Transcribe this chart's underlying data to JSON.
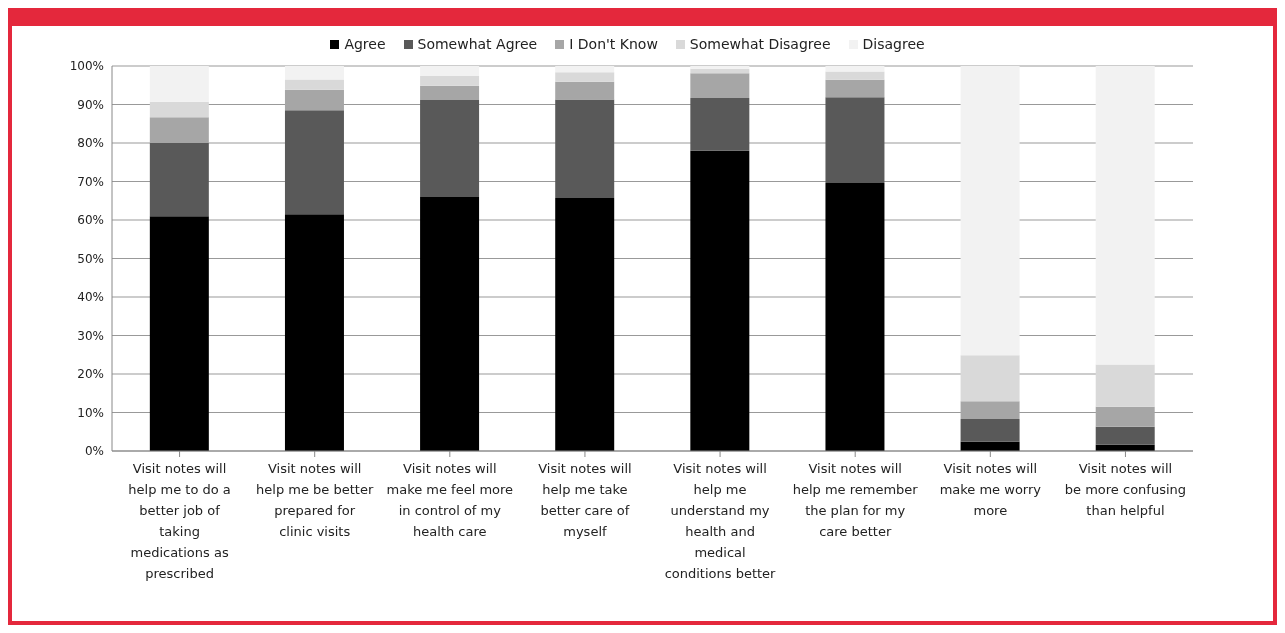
{
  "chart_data": {
    "type": "bar",
    "stacked": true,
    "legend": "top",
    "grid": "y",
    "categories": [
      "Visit notes will help me to do a better job of taking medications as prescribed",
      "Visit notes will help me be better prepared for clinic visits",
      "Visit notes will make me feel more in control of my health care",
      "Visit notes will help me take better care of myself",
      "Visit notes will help me understand my health and medical conditions better",
      "Visit notes will help me remember the plan for my care better",
      "Visit notes will make me worry more",
      "Visit notes will be more confusing than helpful"
    ],
    "series": [
      {
        "name": "Agree",
        "color": "#000000",
        "values": [
          61,
          61.5,
          66,
          65.7,
          78,
          69.6,
          2.4,
          1.6
        ]
      },
      {
        "name": "Somewhat Agree",
        "color": "#595959",
        "values": [
          19,
          27,
          25.2,
          25.6,
          13.7,
          22.3,
          5.9,
          4.7
        ]
      },
      {
        "name": "I Don't Know",
        "color": "#a6a6a6",
        "values": [
          6.7,
          5.3,
          3.7,
          4.6,
          6.4,
          4.5,
          4.6,
          5.2
        ]
      },
      {
        "name": "Somewhat Disagree",
        "color": "#d9d9d9",
        "values": [
          4,
          2.7,
          2.5,
          2.5,
          1.2,
          2.2,
          12,
          11
        ]
      },
      {
        "name": "Disagree",
        "color": "#f2f2f2",
        "values": [
          9.3,
          3.5,
          2.6,
          1.6,
          0.7,
          1.4,
          75.1,
          77.5
        ]
      }
    ],
    "ylim": [
      0,
      100
    ],
    "yticks": [
      {
        "value": 0,
        "label": "0%"
      },
      {
        "value": 10,
        "label": "10%"
      },
      {
        "value": 20,
        "label": "20%"
      },
      {
        "value": 30,
        "label": "30%"
      },
      {
        "value": 40,
        "label": "40%"
      },
      {
        "value": 50,
        "label": "50%"
      },
      {
        "value": 60,
        "label": "60%"
      },
      {
        "value": 70,
        "label": "70%"
      },
      {
        "value": 80,
        "label": "80%"
      },
      {
        "value": 90,
        "label": "90%"
      },
      {
        "value": 100,
        "label": "100%"
      }
    ]
  }
}
